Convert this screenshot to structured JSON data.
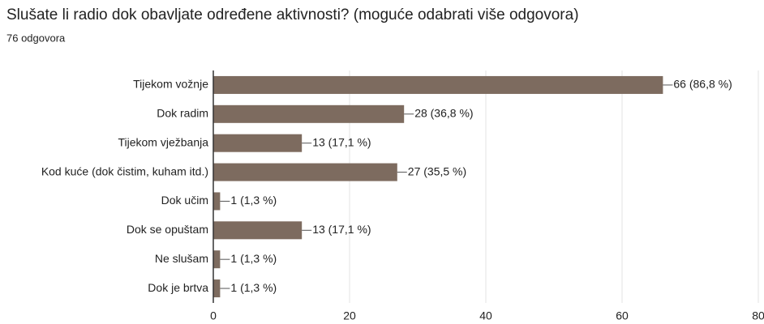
{
  "chart_data": {
    "type": "bar",
    "orientation": "horizontal",
    "title": "Slušate li radio dok obavljate određene aktivnosti? (moguće odabrati više odgovora)",
    "subtitle": "76 odgovora",
    "categories": [
      "Tijekom vožnje",
      "Dok radim",
      "Tijekom vježbanja",
      "Kod kuće (dok čistim, kuham itd.)",
      "Dok učim",
      "Dok se opuštam",
      "Ne slušam",
      "Dok je brtva"
    ],
    "values": [
      66,
      28,
      13,
      27,
      1,
      13,
      1,
      1
    ],
    "value_labels": [
      "66 (86,8 %)",
      "28 (36,8 %)",
      "13 (17,1 %)",
      "27 (35,5 %)",
      "1 (1,3 %)",
      "13 (17,1 %)",
      "1 (1,3 %)",
      "1 (1,3 %)"
    ],
    "color": "#7d6b5f",
    "xlim": [
      0,
      80
    ],
    "xticks": [
      0,
      20,
      40,
      60,
      80
    ],
    "grid": true
  }
}
